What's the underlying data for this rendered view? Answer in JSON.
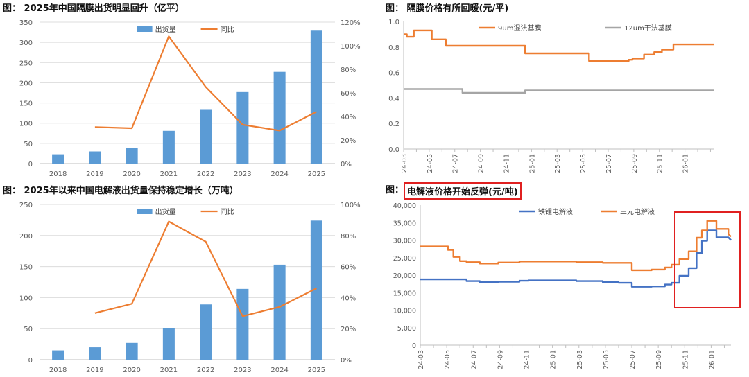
{
  "chart_data": [
    {
      "type": "bar",
      "title": "图：   2025年中国隔膜出货明显回升（亿平）",
      "categories": [
        "2018",
        "2019",
        "2020",
        "2021",
        "2022",
        "2023",
        "2024",
        "2025"
      ],
      "series": [
        {
          "name": "出货量",
          "axis": "left",
          "values": [
            23,
            30,
            39,
            81,
            133,
            177,
            227,
            329
          ]
        },
        {
          "name": "同比",
          "axis": "right",
          "values": [
            null,
            31,
            30,
            108,
            65,
            33,
            28,
            44
          ]
        }
      ],
      "ylim": [
        0,
        350
      ],
      "yticks": [
        "0",
        "50",
        "100",
        "150",
        "200",
        "250",
        "300",
        "350"
      ],
      "y2lim": [
        0,
        120
      ],
      "y2ticks": [
        "0%",
        "20%",
        "40%",
        "60%",
        "80%",
        "100%",
        "120%"
      ],
      "legend": [
        "出货量",
        "同比"
      ],
      "colors": {
        "bar": "#5b9bd5",
        "line": "#ed7d31"
      }
    },
    {
      "type": "line",
      "title": "图：   隔膜价格有所回暖(元/平)",
      "xticks": [
        "24-03",
        "24-05",
        "24-07",
        "24-09",
        "24-11",
        "25-01",
        "25-03",
        "25-05",
        "25-07",
        "25-09",
        "25-11",
        "26-01"
      ],
      "xrange": [
        0,
        24.3
      ],
      "series": [
        {
          "name": "9um湿法基膜",
          "color": "#ed7d31",
          "points": [
            [
              0,
              0.9
            ],
            [
              0.25,
              0.9
            ],
            [
              0.25,
              0.88
            ],
            [
              0.8,
              0.88
            ],
            [
              0.8,
              0.93
            ],
            [
              2.2,
              0.93
            ],
            [
              2.2,
              0.86
            ],
            [
              3.3,
              0.86
            ],
            [
              3.3,
              0.81
            ],
            [
              9.5,
              0.81
            ],
            [
              9.5,
              0.75
            ],
            [
              14.5,
              0.75
            ],
            [
              14.5,
              0.69
            ],
            [
              17.6,
              0.69
            ],
            [
              17.6,
              0.7
            ],
            [
              17.9,
              0.7
            ],
            [
              17.9,
              0.71
            ],
            [
              18.8,
              0.71
            ],
            [
              18.8,
              0.74
            ],
            [
              19.6,
              0.74
            ],
            [
              19.6,
              0.76
            ],
            [
              20.2,
              0.76
            ],
            [
              20.2,
              0.78
            ],
            [
              21.1,
              0.78
            ],
            [
              21.1,
              0.82
            ],
            [
              24.3,
              0.82
            ]
          ]
        },
        {
          "name": "12um干法基膜",
          "color": "#a5a5a5",
          "points": [
            [
              0,
              0.47
            ],
            [
              4.6,
              0.47
            ],
            [
              4.6,
              0.44
            ],
            [
              9.5,
              0.44
            ],
            [
              9.5,
              0.46
            ],
            [
              24.3,
              0.46
            ]
          ]
        }
      ],
      "ylim": [
        0,
        1.0
      ],
      "yticks": [
        "0.0",
        "0.2",
        "0.4",
        "0.6",
        "0.8",
        "1.0"
      ],
      "legend": [
        "9um湿法基膜",
        "12um干法基膜"
      ]
    },
    {
      "type": "bar",
      "title": "图：   2025年以来中国电解液出货量保持稳定增长（万吨）",
      "categories": [
        "2018",
        "2019",
        "2020",
        "2021",
        "2022",
        "2023",
        "2024",
        "2025"
      ],
      "series": [
        {
          "name": "出货量",
          "axis": "left",
          "values": [
            15,
            20,
            27,
            51,
            89,
            114,
            153,
            224
          ]
        },
        {
          "name": "同比",
          "axis": "right",
          "values": [
            null,
            30,
            36,
            89,
            76,
            28,
            34,
            46
          ]
        }
      ],
      "ylim": [
        0,
        250
      ],
      "yticks": [
        "0",
        "50",
        "100",
        "150",
        "200",
        "250"
      ],
      "y2lim": [
        0,
        100
      ],
      "y2ticks": [
        "0%",
        "20%",
        "40%",
        "60%",
        "80%",
        "100%"
      ],
      "legend": [
        "出货量",
        "同比"
      ],
      "colors": {
        "bar": "#5b9bd5",
        "line": "#ed7d31"
      }
    },
    {
      "type": "line",
      "title": "电解液价格开始反弹(元/吨)",
      "title_prefix": "图：",
      "xticks": [
        "24-03",
        "24-05",
        "24-07",
        "24-09",
        "24-11",
        "25-01",
        "25-03",
        "25-05",
        "25-07",
        "25-09",
        "25-11",
        "26-01"
      ],
      "xrange": [
        0,
        23.5
      ],
      "series": [
        {
          "name": "铁锂电解液",
          "color": "#4472c4",
          "points": [
            [
              0,
              18800
            ],
            [
              3.5,
              18800
            ],
            [
              3.5,
              18300
            ],
            [
              4.5,
              18300
            ],
            [
              4.5,
              18000
            ],
            [
              5.9,
              18000
            ],
            [
              5.9,
              18100
            ],
            [
              7.5,
              18100
            ],
            [
              7.5,
              18400
            ],
            [
              8.2,
              18400
            ],
            [
              8.2,
              18500
            ],
            [
              11.8,
              18500
            ],
            [
              11.8,
              18300
            ],
            [
              13.8,
              18300
            ],
            [
              13.8,
              18000
            ],
            [
              15,
              18000
            ],
            [
              15,
              17800
            ],
            [
              16,
              17800
            ],
            [
              16,
              16700
            ],
            [
              17.5,
              16700
            ],
            [
              17.5,
              16800
            ],
            [
              18.5,
              16800
            ],
            [
              18.5,
              17300
            ],
            [
              19,
              17300
            ],
            [
              19,
              17800
            ],
            [
              19.6,
              17800
            ],
            [
              19.6,
              19800
            ],
            [
              20.3,
              19800
            ],
            [
              20.3,
              22000
            ],
            [
              20.9,
              22000
            ],
            [
              20.9,
              26300
            ],
            [
              21.3,
              26300
            ],
            [
              21.3,
              29800
            ],
            [
              21.7,
              29800
            ],
            [
              21.7,
              32800
            ],
            [
              22.4,
              32800
            ],
            [
              22.4,
              30800
            ],
            [
              23.3,
              30800
            ],
            [
              23.5,
              30000
            ]
          ]
        },
        {
          "name": "三元电解液",
          "color": "#ed7d31",
          "points": [
            [
              0,
              28200
            ],
            [
              2.1,
              28200
            ],
            [
              2.1,
              27200
            ],
            [
              2.5,
              27200
            ],
            [
              2.5,
              25200
            ],
            [
              3.0,
              25200
            ],
            [
              3.0,
              24000
            ],
            [
              3.5,
              24000
            ],
            [
              3.5,
              23700
            ],
            [
              4.5,
              23700
            ],
            [
              4.5,
              23300
            ],
            [
              5.9,
              23300
            ],
            [
              5.9,
              23600
            ],
            [
              7.5,
              23600
            ],
            [
              7.5,
              23900
            ],
            [
              11.8,
              23900
            ],
            [
              11.8,
              23700
            ],
            [
              13.8,
              23700
            ],
            [
              13.8,
              23500
            ],
            [
              16,
              23500
            ],
            [
              16,
              21400
            ],
            [
              17.5,
              21400
            ],
            [
              17.5,
              21600
            ],
            [
              18.5,
              21600
            ],
            [
              18.5,
              22200
            ],
            [
              19,
              22200
            ],
            [
              19,
              23000
            ],
            [
              19.6,
              23000
            ],
            [
              19.6,
              24600
            ],
            [
              20.3,
              24600
            ],
            [
              20.3,
              26800
            ],
            [
              20.9,
              26800
            ],
            [
              20.9,
              30700
            ],
            [
              21.3,
              30700
            ],
            [
              21.3,
              32800
            ],
            [
              21.7,
              32800
            ],
            [
              21.7,
              35500
            ],
            [
              22.4,
              35500
            ],
            [
              22.4,
              33200
            ],
            [
              23.3,
              33200
            ],
            [
              23.3,
              31700
            ],
            [
              23.5,
              31000
            ]
          ]
        }
      ],
      "ylim": [
        0,
        40000
      ],
      "yticks": [
        "0",
        "5,000",
        "10,000",
        "15,000",
        "20,000",
        "25,000",
        "30,000",
        "35,000",
        "40,000"
      ],
      "legend": [
        "铁锂电解液",
        "三元电解液"
      ],
      "highlight_color": "#e02020"
    }
  ]
}
